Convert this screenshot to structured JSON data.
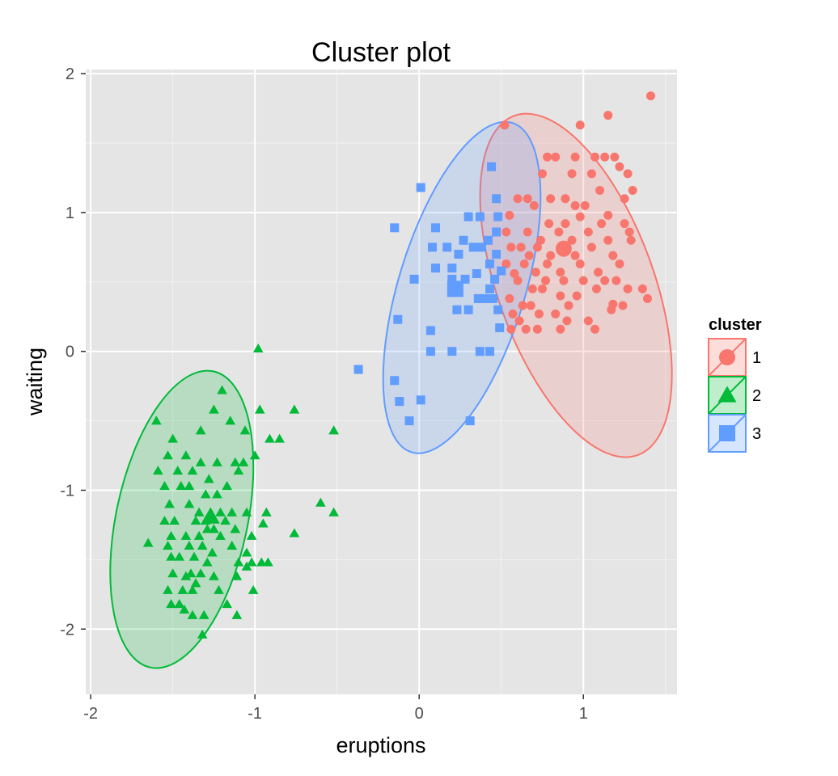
{
  "chart_data": {
    "type": "scatter",
    "title": "Cluster plot",
    "xlabel": "eruptions",
    "ylabel": "waiting",
    "xlim": [
      -2.03,
      1.57
    ],
    "ylim": [
      -2.47,
      2.03
    ],
    "x_ticks": [
      -2,
      -1,
      0,
      1
    ],
    "y_ticks": [
      -2,
      -1,
      0,
      1,
      2
    ],
    "x_tick_labels": [
      "-2",
      "-1",
      "0",
      "1"
    ],
    "y_tick_labels": [
      "-2",
      "-1",
      "0",
      "1",
      "2"
    ],
    "grid": true,
    "legend": {
      "title": "cluster",
      "placement": "right",
      "entries": [
        "1",
        "2",
        "3"
      ]
    },
    "series": [
      {
        "name": "1",
        "color": "#F8766D",
        "shape": "circle",
        "center": [
          0.88,
          0.74
        ],
        "ellipse": {
          "cx": 0.955,
          "cy": 0.475,
          "rx": 0.475,
          "ry": 1.3,
          "angle_deg": -20
        },
        "points": [
          [
            0.52,
            1.63
          ],
          [
            0.98,
            1.63
          ],
          [
            1.15,
            1.7
          ],
          [
            1.41,
            1.84
          ],
          [
            0.78,
            1.4
          ],
          [
            0.83,
            1.4
          ],
          [
            0.95,
            1.4
          ],
          [
            1.07,
            1.4
          ],
          [
            1.13,
            1.4
          ],
          [
            1.19,
            1.4
          ],
          [
            0.75,
            1.28
          ],
          [
            0.93,
            1.28
          ],
          [
            1.05,
            1.28
          ],
          [
            1.22,
            1.33
          ],
          [
            1.27,
            1.28
          ],
          [
            0.6,
            1.1
          ],
          [
            0.66,
            1.1
          ],
          [
            0.8,
            1.1
          ],
          [
            0.89,
            1.1
          ],
          [
            1.1,
            1.16
          ],
          [
            1.25,
            1.1
          ],
          [
            0.55,
            0.98
          ],
          [
            0.7,
            1.05
          ],
          [
            0.95,
            1.05
          ],
          [
            1.01,
            1.05
          ],
          [
            1.15,
            0.98
          ],
          [
            1.3,
            1.16
          ],
          [
            0.53,
            0.86
          ],
          [
            0.66,
            0.86
          ],
          [
            0.79,
            0.92
          ],
          [
            0.89,
            0.92
          ],
          [
            0.98,
            0.97
          ],
          [
            1.11,
            0.92
          ],
          [
            1.25,
            0.92
          ],
          [
            0.56,
            0.75
          ],
          [
            0.62,
            0.75
          ],
          [
            0.74,
            0.8
          ],
          [
            0.85,
            0.86
          ],
          [
            0.93,
            0.8
          ],
          [
            1.03,
            0.86
          ],
          [
            1.15,
            0.8
          ],
          [
            1.28,
            0.86
          ],
          [
            0.53,
            0.63
          ],
          [
            0.67,
            0.69
          ],
          [
            0.72,
            0.75
          ],
          [
            0.8,
            0.69
          ],
          [
            0.95,
            0.69
          ],
          [
            1.05,
            0.75
          ],
          [
            1.18,
            0.69
          ],
          [
            1.29,
            0.8
          ],
          [
            0.58,
            0.56
          ],
          [
            0.64,
            0.63
          ],
          [
            0.71,
            0.57
          ],
          [
            0.78,
            0.63
          ],
          [
            0.86,
            0.57
          ],
          [
            0.98,
            0.63
          ],
          [
            1.09,
            0.57
          ],
          [
            1.22,
            0.63
          ],
          [
            0.6,
            0.51
          ],
          [
            0.69,
            0.45
          ],
          [
            0.77,
            0.51
          ],
          [
            0.88,
            0.51
          ],
          [
            1.0,
            0.51
          ],
          [
            1.13,
            0.51
          ],
          [
            1.2,
            0.51
          ],
          [
            1.27,
            0.45
          ],
          [
            0.55,
            0.38
          ],
          [
            0.63,
            0.33
          ],
          [
            0.75,
            0.45
          ],
          [
            0.86,
            0.4
          ],
          [
            0.96,
            0.4
          ],
          [
            1.08,
            0.45
          ],
          [
            1.17,
            0.3
          ],
          [
            1.36,
            0.45
          ],
          [
            0.57,
            0.27
          ],
          [
            0.61,
            0.22
          ],
          [
            0.68,
            0.33
          ],
          [
            0.73,
            0.27
          ],
          [
            0.83,
            0.27
          ],
          [
            0.91,
            0.33
          ],
          [
            1.03,
            0.22
          ],
          [
            1.18,
            0.34
          ],
          [
            1.39,
            0.38
          ],
          [
            0.56,
            0.16
          ],
          [
            0.65,
            0.16
          ],
          [
            0.72,
            0.16
          ],
          [
            0.86,
            0.16
          ],
          [
            0.9,
            0.22
          ],
          [
            1.07,
            0.16
          ],
          [
            1.24,
            0.33
          ]
        ]
      },
      {
        "name": "2",
        "color": "#00BA38",
        "shape": "triangle",
        "center": [
          -1.27,
          -1.19
        ],
        "ellipse": {
          "cx": -1.445,
          "cy": -1.21,
          "rx": 0.4,
          "ry": 1.09,
          "angle_deg": 12
        },
        "points": [
          [
            -0.98,
            0.02
          ],
          [
            -1.2,
            -0.28
          ],
          [
            -1.25,
            -0.42
          ],
          [
            -1.6,
            -0.5
          ],
          [
            -1.15,
            -0.5
          ],
          [
            -0.97,
            -0.42
          ],
          [
            -0.76,
            -0.42
          ],
          [
            -1.5,
            -0.63
          ],
          [
            -1.33,
            -0.57
          ],
          [
            -1.06,
            -0.57
          ],
          [
            -0.91,
            -0.63
          ],
          [
            -0.52,
            -0.57
          ],
          [
            -1.53,
            -0.75
          ],
          [
            -1.42,
            -0.75
          ],
          [
            -1.33,
            -0.8
          ],
          [
            -1.23,
            -0.8
          ],
          [
            -1.12,
            -0.8
          ],
          [
            -1.0,
            -0.75
          ],
          [
            -0.85,
            -0.63
          ],
          [
            -1.59,
            -0.86
          ],
          [
            -1.47,
            -0.86
          ],
          [
            -1.38,
            -0.86
          ],
          [
            -1.28,
            -0.92
          ],
          [
            -1.1,
            -0.86
          ],
          [
            -1.07,
            -0.8
          ],
          [
            -1.55,
            -0.97
          ],
          [
            -1.45,
            -0.97
          ],
          [
            -1.4,
            -0.97
          ],
          [
            -1.3,
            -1.03
          ],
          [
            -1.23,
            -1.03
          ],
          [
            -1.17,
            -0.97
          ],
          [
            -0.6,
            -1.09
          ],
          [
            -0.52,
            -1.16
          ],
          [
            -1.52,
            -1.1
          ],
          [
            -1.4,
            -1.1
          ],
          [
            -1.34,
            -1.16
          ],
          [
            -1.27,
            -1.16
          ],
          [
            -1.21,
            -1.16
          ],
          [
            -1.14,
            -1.16
          ],
          [
            -1.05,
            -1.16
          ],
          [
            -0.93,
            -1.16
          ],
          [
            -1.55,
            -1.22
          ],
          [
            -1.49,
            -1.22
          ],
          [
            -1.36,
            -1.22
          ],
          [
            -1.3,
            -1.22
          ],
          [
            -1.25,
            -1.28
          ],
          [
            -1.18,
            -1.22
          ],
          [
            -1.12,
            -1.28
          ],
          [
            -0.95,
            -1.24
          ],
          [
            -1.51,
            -1.33
          ],
          [
            -1.42,
            -1.33
          ],
          [
            -1.34,
            -1.33
          ],
          [
            -1.29,
            -1.28
          ],
          [
            -1.21,
            -1.33
          ],
          [
            -1.02,
            -1.33
          ],
          [
            -0.76,
            -1.31
          ],
          [
            -1.65,
            -1.38
          ],
          [
            -1.53,
            -1.4
          ],
          [
            -1.4,
            -1.4
          ],
          [
            -1.32,
            -1.4
          ],
          [
            -1.26,
            -1.45
          ],
          [
            -1.14,
            -1.4
          ],
          [
            -1.05,
            -1.45
          ],
          [
            -1.51,
            -1.48
          ],
          [
            -1.46,
            -1.48
          ],
          [
            -1.37,
            -1.48
          ],
          [
            -1.29,
            -1.52
          ],
          [
            -1.1,
            -1.52
          ],
          [
            -1.02,
            -1.52
          ],
          [
            -0.96,
            -1.52
          ],
          [
            -0.92,
            -1.52
          ],
          [
            -1.5,
            -1.6
          ],
          [
            -1.42,
            -1.62
          ],
          [
            -1.39,
            -1.6
          ],
          [
            -1.33,
            -1.6
          ],
          [
            -1.25,
            -1.62
          ],
          [
            -1.11,
            -1.62
          ],
          [
            -1.05,
            -1.55
          ],
          [
            -1.53,
            -1.72
          ],
          [
            -1.44,
            -1.72
          ],
          [
            -1.38,
            -1.72
          ],
          [
            -1.36,
            -1.67
          ],
          [
            -1.22,
            -1.72
          ],
          [
            -1.01,
            -1.72
          ],
          [
            -1.51,
            -1.82
          ],
          [
            -1.46,
            -1.82
          ],
          [
            -1.43,
            -1.86
          ],
          [
            -1.17,
            -1.82
          ],
          [
            -1.38,
            -1.9
          ],
          [
            -1.31,
            -1.9
          ],
          [
            -1.11,
            -1.9
          ],
          [
            -1.32,
            -2.04
          ]
        ]
      },
      {
        "name": "3",
        "color": "#619CFF",
        "shape": "square",
        "center": [
          0.22,
          0.45
        ],
        "ellipse": {
          "cx": 0.26,
          "cy": 0.46,
          "rx": 0.385,
          "ry": 1.24,
          "angle_deg": 17
        },
        "points": [
          [
            -0.37,
            -0.13
          ],
          [
            -0.15,
            -0.21
          ],
          [
            -0.12,
            -0.36
          ],
          [
            -0.06,
            -0.5
          ],
          [
            0.01,
            -0.35
          ],
          [
            0.31,
            -0.5
          ],
          [
            -0.13,
            0.23
          ],
          [
            0.07,
            0.15
          ],
          [
            0.07,
            0.0
          ],
          [
            0.2,
            0.0
          ],
          [
            0.37,
            0.0
          ],
          [
            0.43,
            0.0
          ],
          [
            -0.15,
            0.89
          ],
          [
            0.01,
            1.18
          ],
          [
            0.1,
            0.89
          ],
          [
            0.27,
            0.8
          ],
          [
            0.3,
            0.97
          ],
          [
            0.37,
            0.97
          ],
          [
            0.44,
            1.33
          ],
          [
            -0.03,
            0.52
          ],
          [
            0.1,
            0.6
          ],
          [
            0.17,
            0.75
          ],
          [
            0.2,
            0.6
          ],
          [
            0.24,
            0.7
          ],
          [
            0.33,
            0.75
          ],
          [
            0.38,
            0.75
          ],
          [
            0.42,
            0.8
          ],
          [
            0.47,
            0.86
          ],
          [
            0.08,
            0.75
          ],
          [
            0.2,
            0.52
          ],
          [
            0.28,
            0.52
          ],
          [
            0.35,
            0.56
          ],
          [
            0.43,
            0.63
          ],
          [
            0.46,
            0.52
          ],
          [
            0.47,
            0.7
          ],
          [
            0.47,
            1.1
          ],
          [
            0.48,
            0.97
          ],
          [
            0.23,
            0.3
          ],
          [
            0.3,
            0.3
          ],
          [
            0.36,
            0.38
          ],
          [
            0.4,
            0.38
          ],
          [
            0.43,
            0.45
          ],
          [
            0.45,
            0.38
          ],
          [
            0.48,
            0.3
          ],
          [
            0.49,
            0.17
          ],
          [
            0.5,
            0.58
          ]
        ]
      }
    ]
  }
}
